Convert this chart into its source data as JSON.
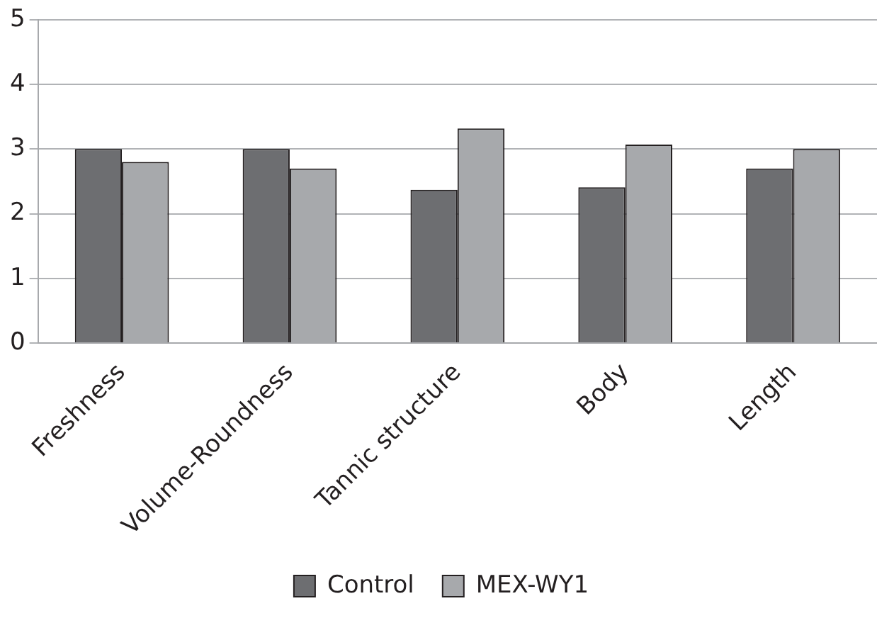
{
  "chart_data": {
    "type": "bar",
    "categories": [
      "Freshness",
      "Volume-Roundness",
      "Tannic structure",
      "Body",
      "Length"
    ],
    "series": [
      {
        "name": "Control",
        "color": "#6d6e71",
        "values": [
          3.0,
          3.0,
          2.37,
          2.41,
          2.7
        ]
      },
      {
        "name": "MEX-WY1",
        "color": "#a7a9ac",
        "values": [
          2.8,
          2.7,
          3.32,
          3.07,
          3.0
        ]
      }
    ],
    "ylim": [
      0,
      5
    ],
    "yticks": [
      0,
      1,
      2,
      3,
      4,
      5
    ],
    "grid": "y",
    "legend": "bottom"
  }
}
